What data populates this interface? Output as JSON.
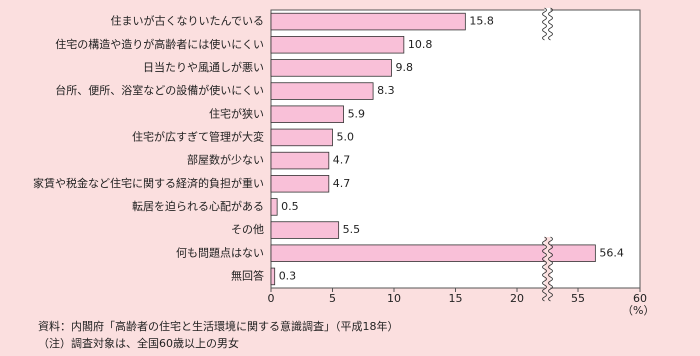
{
  "chart_data": {
    "type": "hbar",
    "categories": [
      "住まいが古くなりいたんでいる",
      "住宅の構造や造りが高齢者には使いにくい",
      "日当たりや風通しが悪い",
      "台所、便所、浴室などの設備が使いにくい",
      "住宅が狭い",
      "住宅が広すぎて管理が大変",
      "部屋数が少ない",
      "家賃や税金など住宅に関する経済的負担が重い",
      "転居を迫られる心配がある",
      "その他",
      "何も問題点はない",
      "無回答"
    ],
    "values": [
      15.8,
      10.8,
      9.8,
      8.3,
      5.9,
      5.0,
      4.7,
      4.7,
      0.5,
      5.5,
      56.4,
      0.3
    ],
    "value_labels": [
      "15.8",
      "10.8",
      "9.8",
      "8.3",
      "5.9",
      "5.0",
      "4.7",
      "4.7",
      "0.5",
      "5.5",
      "56.4",
      "0.3"
    ],
    "color": "#f9c0d8",
    "xlim": [
      0,
      60
    ],
    "xticks": [
      0,
      5,
      10,
      15,
      20,
      55,
      60
    ],
    "x_break": [
      20,
      55
    ],
    "x_unit": "（%）",
    "source": "資料：内閣府「高齢者の住宅と生活環境に関する意識調査」（平成18年）",
    "note": "（注）調査対象は、全国60歳以上の男女"
  }
}
